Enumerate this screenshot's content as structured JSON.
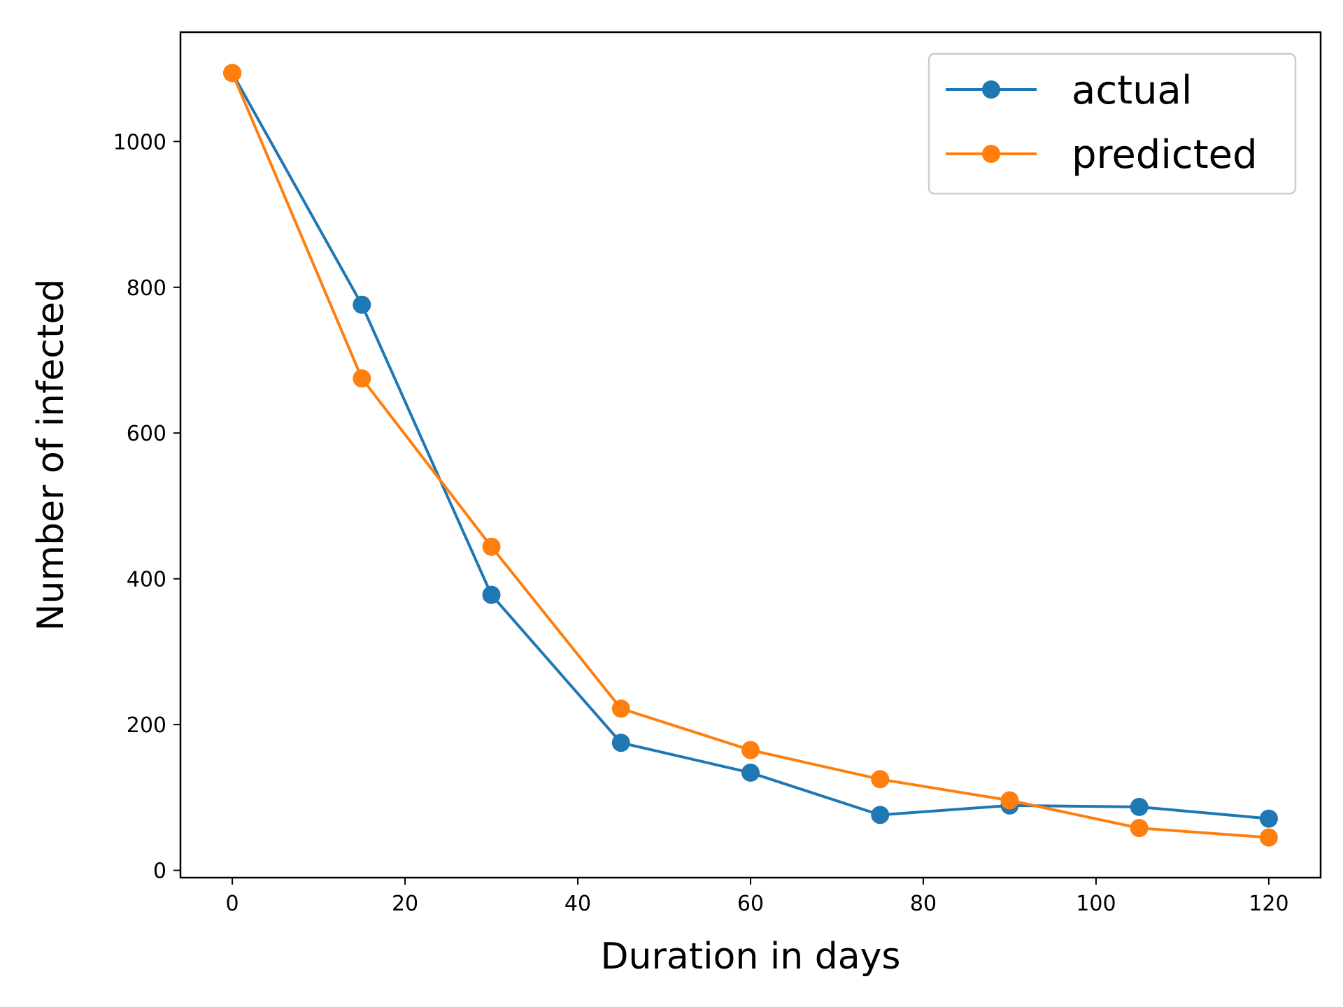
{
  "chart_data": {
    "type": "line",
    "title": "",
    "xlabel": "Duration in days",
    "ylabel": "Number of infected",
    "x": [
      0,
      15,
      30,
      45,
      60,
      75,
      90,
      105,
      120
    ],
    "xlim": [
      -6,
      126
    ],
    "ylim": [
      -10,
      1150
    ],
    "xticks": [
      0,
      20,
      40,
      60,
      80,
      100,
      120
    ],
    "yticks": [
      0,
      200,
      400,
      600,
      800,
      1000
    ],
    "grid": false,
    "legend_position": "top-right",
    "series": [
      {
        "name": "actual",
        "color": "#1f77b4",
        "marker": "circle",
        "values": [
          1094,
          776,
          378,
          175,
          134,
          76,
          89,
          87,
          71
        ]
      },
      {
        "name": "predicted",
        "color": "#ff7f0e",
        "marker": "circle",
        "values": [
          1094,
          675,
          444,
          222,
          165,
          125,
          96,
          58,
          45
        ]
      }
    ]
  }
}
